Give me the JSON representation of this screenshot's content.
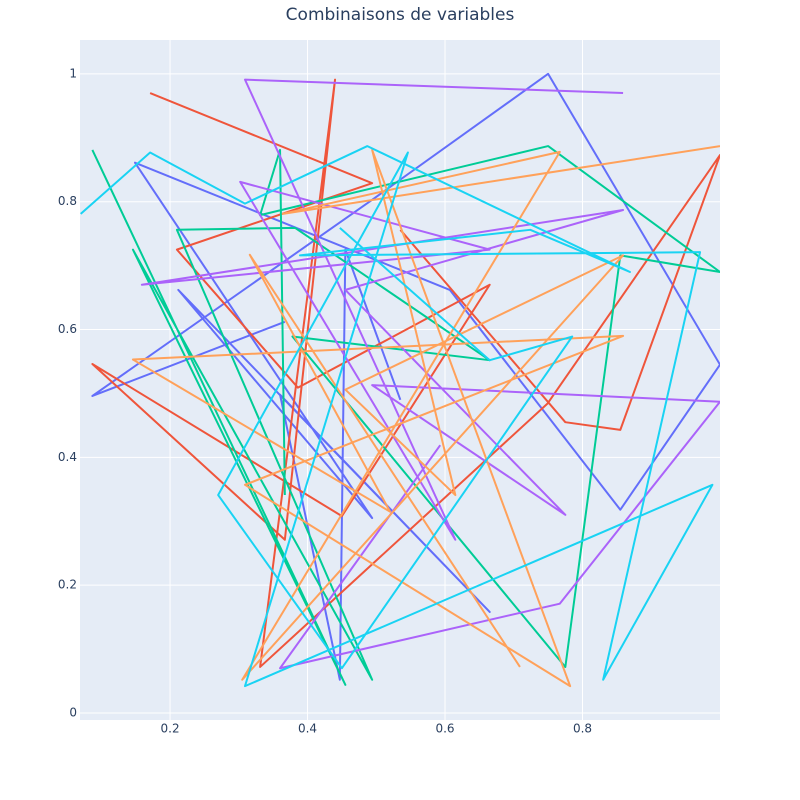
{
  "chart_data": {
    "type": "line",
    "title": "Combinaisons de variables",
    "xlim": [
      0.069,
      1.0
    ],
    "ylim": [
      -0.011,
      1.053
    ],
    "xticks": [
      0.2,
      0.4,
      0.6,
      0.8
    ],
    "yticks": [
      0,
      0.2,
      0.4,
      0.6,
      0.8,
      1
    ],
    "grid": true,
    "series": [
      {
        "color": "#636efa",
        "x": [
          0.367,
          0.087,
          0.494,
          0.75,
          1.0,
          0.855,
          0.607,
          0.149,
          0.494,
          0.212,
          0.665,
          0.36,
          0.447,
          0.455,
          0.535
        ],
        "values": [
          0.612,
          0.496,
          0.803,
          1.0,
          0.545,
          0.318,
          0.662,
          0.861,
          0.305,
          0.662,
          0.158,
          0.498,
          0.052,
          0.725,
          0.49
        ]
      },
      {
        "color": "#EF553B",
        "x": [
          0.171,
          0.494,
          0.21,
          0.386,
          0.665,
          0.45,
          0.087,
          0.367,
          0.44,
          0.331,
          0.749,
          1.0,
          0.855,
          0.775,
          0.535
        ],
        "values": [
          0.97,
          0.829,
          0.725,
          0.509,
          0.67,
          0.308,
          0.546,
          0.271,
          0.991,
          0.072,
          0.484,
          0.873,
          0.443,
          0.455,
          0.756
        ]
      },
      {
        "color": "#00cc96",
        "x": [
          0.087,
          0.455,
          0.146,
          0.494,
          0.21,
          0.382,
          0.665,
          0.378,
          0.775,
          0.855,
          1.0,
          0.75,
          0.331,
          0.36,
          0.367
        ],
        "values": [
          0.881,
          0.044,
          0.725,
          0.052,
          0.756,
          0.759,
          0.552,
          0.589,
          0.072,
          0.716,
          0.69,
          0.887,
          0.779,
          0.881,
          0.341
        ]
      },
      {
        "color": "#ab63fa",
        "x": [
          0.859,
          0.309,
          0.615,
          0.302,
          0.665,
          0.159,
          0.859,
          0.455,
          0.775,
          0.494,
          1.0,
          0.767,
          0.36,
          0.593
        ],
        "values": [
          0.97,
          0.991,
          0.271,
          0.831,
          0.725,
          0.67,
          0.787,
          0.662,
          0.31,
          0.513,
          0.487,
          0.171,
          0.07,
          0.419
        ]
      },
      {
        "color": "#FFA15A",
        "x": [
          1.0,
          0.364,
          0.767,
          0.305,
          0.859,
          0.455,
          0.615,
          0.494,
          0.782,
          0.309,
          0.859,
          0.146,
          0.52,
          0.316,
          0.709
        ],
        "values": [
          0.887,
          0.781,
          0.878,
          0.052,
          0.716,
          0.506,
          0.341,
          0.881,
          0.042,
          0.357,
          0.59,
          0.553,
          0.315,
          0.717,
          0.072
        ]
      },
      {
        "color": "#19d3f3",
        "x": [
          0.07,
          0.171,
          0.309,
          0.487,
          0.869,
          0.724,
          0.389,
          0.971,
          0.83,
          0.989,
          0.309,
          0.546,
          0.27,
          0.45,
          0.785,
          0.665,
          0.447
        ],
        "values": [
          0.781,
          0.877,
          0.797,
          0.887,
          0.69,
          0.756,
          0.716,
          0.721,
          0.052,
          0.357,
          0.042,
          0.877,
          0.341,
          0.07,
          0.589,
          0.552,
          0.759
        ]
      }
    ]
  }
}
